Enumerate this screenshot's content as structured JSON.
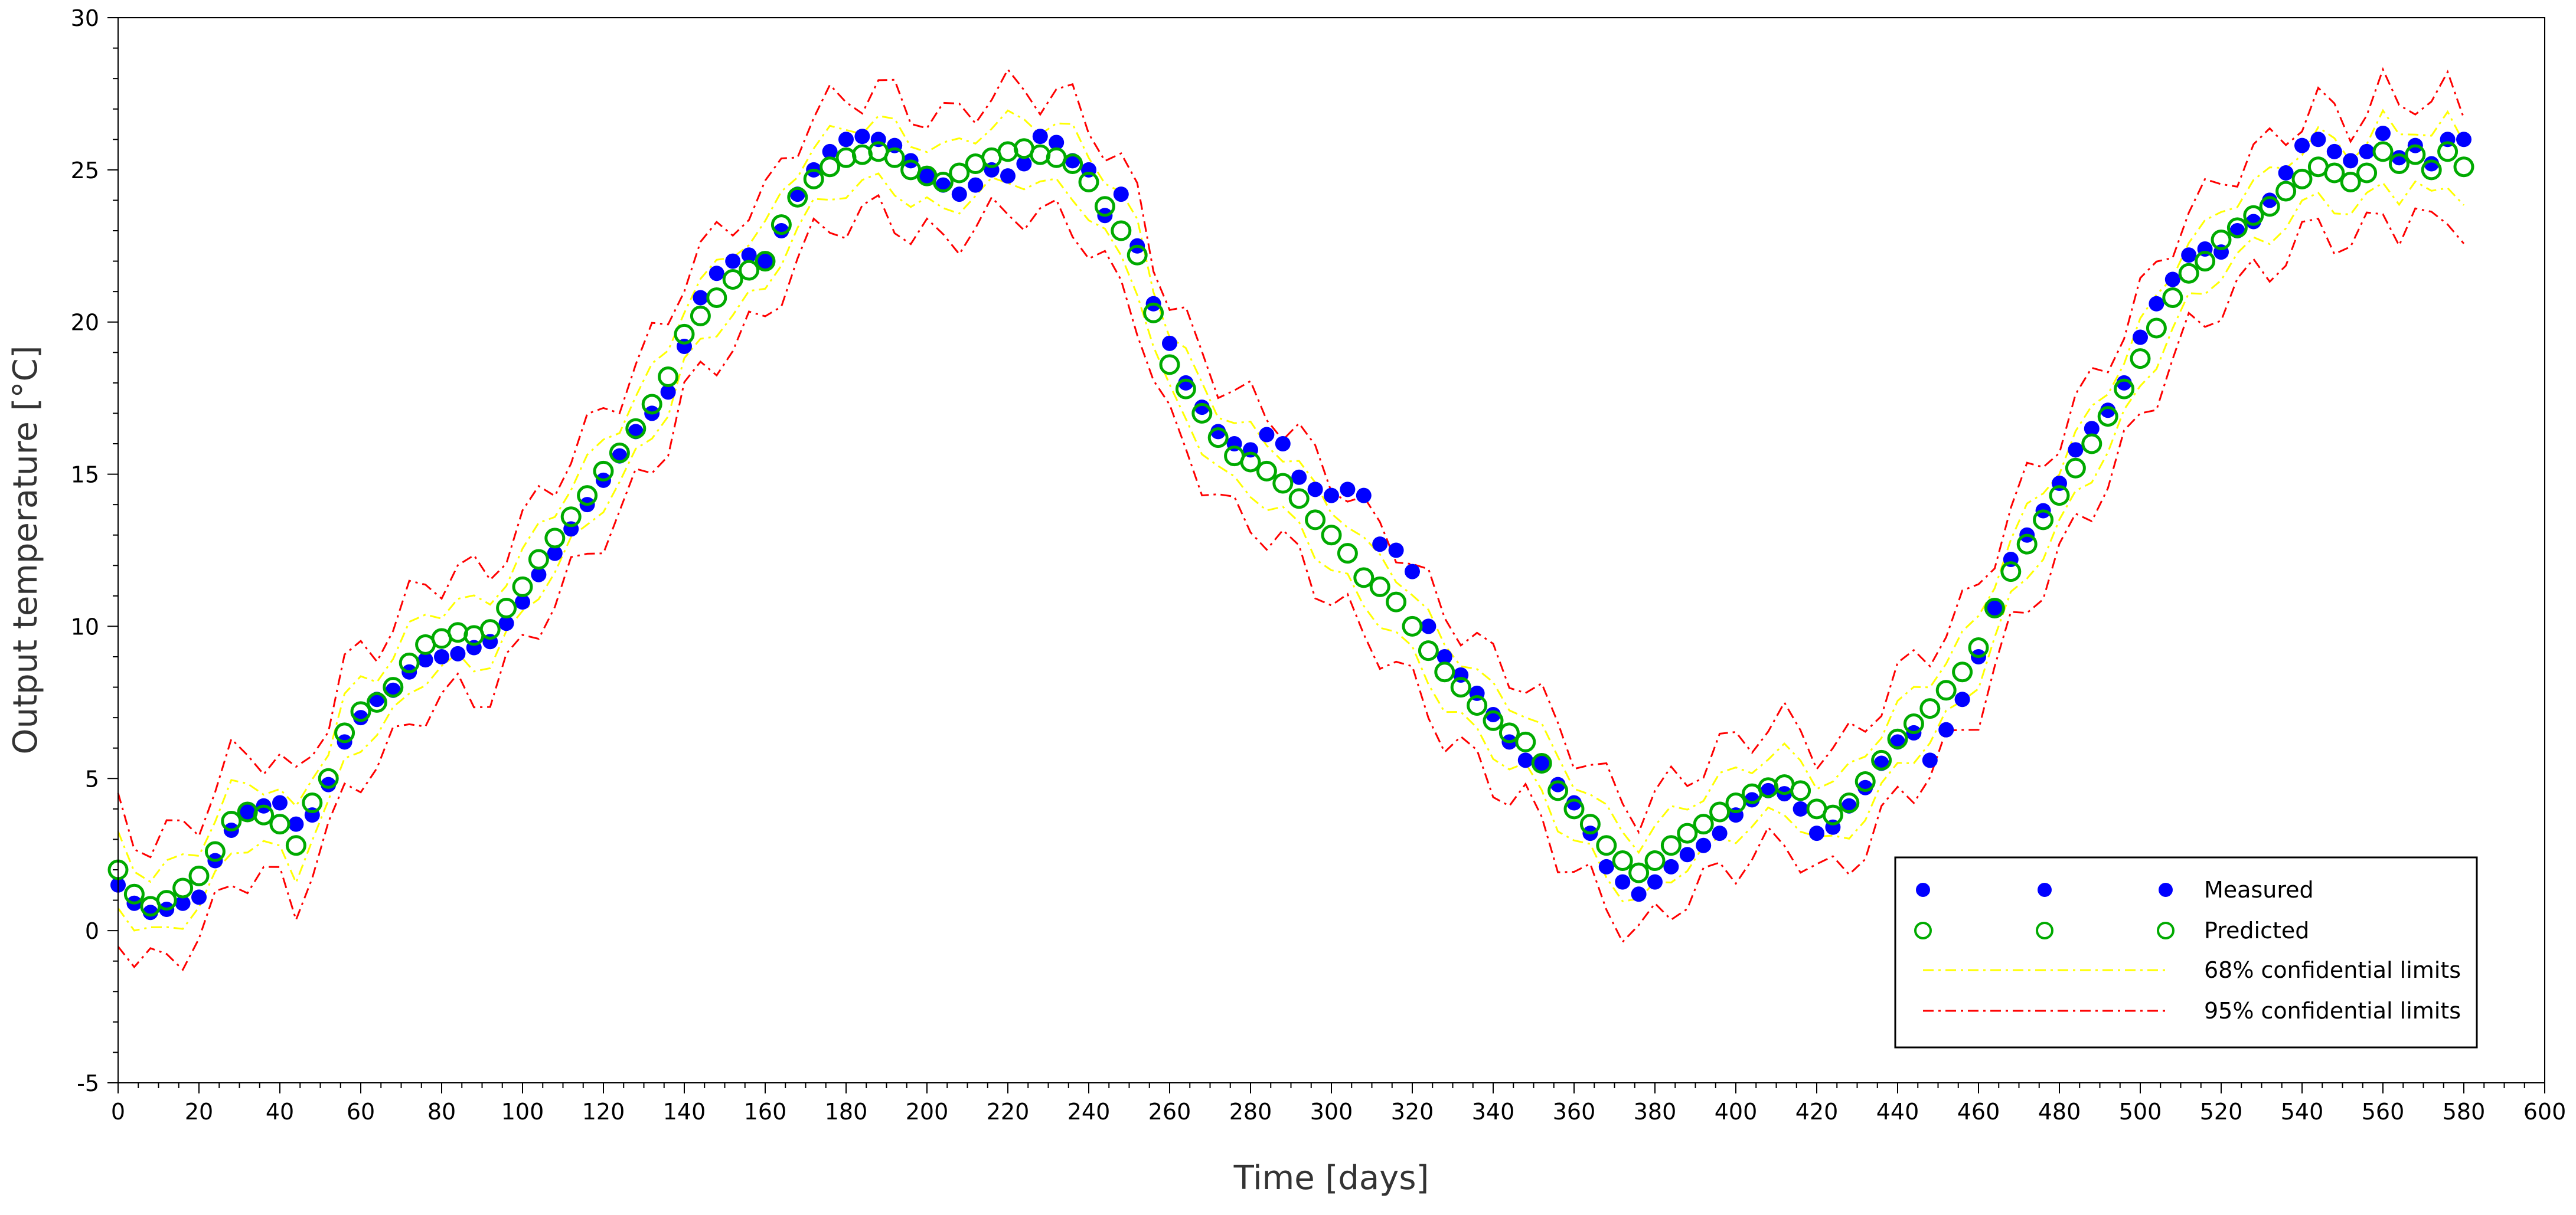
{
  "chart_data": {
    "type": "scatter",
    "title": "",
    "xlabel": "Time [days]",
    "ylabel": "Output temperature [°C]",
    "xlim": [
      0,
      600
    ],
    "ylim": [
      -5,
      30
    ],
    "xticks": [
      0,
      20,
      40,
      60,
      80,
      100,
      120,
      140,
      160,
      180,
      200,
      220,
      240,
      260,
      280,
      300,
      320,
      340,
      360,
      380,
      400,
      420,
      440,
      460,
      480,
      500,
      520,
      540,
      560,
      580,
      600
    ],
    "yticks": [
      -5,
      0,
      5,
      10,
      15,
      20,
      25,
      30
    ],
    "grid": false,
    "legend_position": "bottom-right",
    "x": [
      0,
      4,
      8,
      12,
      16,
      20,
      24,
      28,
      32,
      36,
      40,
      44,
      48,
      52,
      56,
      60,
      64,
      68,
      72,
      76,
      80,
      84,
      88,
      92,
      96,
      100,
      104,
      108,
      112,
      116,
      120,
      124,
      128,
      132,
      136,
      140,
      144,
      148,
      152,
      156,
      160,
      164,
      168,
      172,
      176,
      180,
      184,
      188,
      192,
      196,
      200,
      204,
      208,
      212,
      216,
      220,
      224,
      228,
      232,
      236,
      240,
      244,
      248,
      252,
      256,
      260,
      264,
      268,
      272,
      276,
      280,
      284,
      288,
      292,
      296,
      300,
      304,
      308,
      312,
      316,
      320,
      324,
      328,
      332,
      336,
      340,
      344,
      348,
      352,
      356,
      360,
      364,
      368,
      372,
      376,
      380,
      384,
      388,
      392,
      396,
      400,
      404,
      408,
      412,
      416,
      420,
      424,
      428,
      432,
      436,
      440,
      444,
      448,
      452,
      456,
      460,
      464,
      468,
      472,
      476,
      480,
      484,
      488,
      492,
      496,
      500,
      504,
      508,
      512,
      516,
      520,
      524,
      528,
      532,
      536,
      540,
      544,
      548,
      552,
      556,
      560,
      564,
      568,
      572,
      576,
      580
    ],
    "series": [
      {
        "name": "Measured",
        "color": "#0000ff",
        "marker": "filled-circle",
        "values": [
          1.5,
          0.9,
          0.6,
          0.7,
          0.9,
          1.1,
          2.3,
          3.3,
          3.9,
          4.1,
          4.2,
          3.5,
          3.8,
          4.8,
          6.2,
          7.0,
          7.6,
          7.9,
          8.5,
          8.9,
          9.0,
          9.1,
          9.3,
          9.5,
          10.1,
          10.8,
          11.7,
          12.4,
          13.2,
          14.0,
          14.8,
          15.6,
          16.4,
          17.0,
          17.7,
          19.2,
          20.8,
          21.6,
          22.0,
          22.2,
          22.0,
          23.0,
          24.2,
          25.0,
          25.6,
          26.0,
          26.1,
          26.0,
          25.8,
          25.3,
          24.8,
          24.5,
          24.2,
          24.5,
          25.0,
          24.8,
          25.2,
          26.1,
          25.9,
          25.3,
          25.0,
          23.5,
          24.2,
          22.5,
          20.6,
          19.3,
          18.0,
          17.2,
          16.4,
          16.0,
          15.8,
          16.3,
          16.0,
          14.9,
          14.5,
          14.3,
          14.5,
          14.3,
          12.7,
          12.5,
          11.8,
          10.0,
          9.0,
          8.4,
          7.8,
          7.1,
          6.2,
          5.6,
          5.5,
          4.8,
          4.2,
          3.2,
          2.1,
          1.6,
          1.2,
          1.6,
          2.1,
          2.5,
          2.8,
          3.2,
          3.8,
          4.3,
          4.6,
          4.5,
          4.0,
          3.2,
          3.4,
          4.1,
          4.7,
          5.5,
          6.2,
          6.5,
          5.6,
          6.6,
          7.6,
          9.0,
          10.6,
          12.2,
          13.0,
          13.8,
          14.7,
          15.8,
          16.5,
          17.1,
          18.0,
          19.5,
          20.6,
          21.4,
          22.2,
          22.4,
          22.3,
          23.0,
          23.3,
          24.0,
          24.9,
          25.8,
          26.0,
          25.6,
          25.3,
          25.6,
          26.2,
          25.4,
          25.8,
          25.2,
          26.0,
          26.0
        ]
      },
      {
        "name": "Predicted",
        "color": "#00aa00",
        "marker": "hollow-circle",
        "values": [
          2.0,
          1.2,
          0.8,
          1.0,
          1.4,
          1.8,
          2.6,
          3.6,
          3.9,
          3.8,
          3.5,
          2.8,
          4.2,
          5.0,
          6.5,
          7.2,
          7.5,
          8.0,
          8.8,
          9.4,
          9.6,
          9.8,
          9.7,
          9.9,
          10.6,
          11.3,
          12.2,
          12.9,
          13.6,
          14.3,
          15.1,
          15.7,
          16.5,
          17.3,
          18.2,
          19.6,
          20.2,
          20.8,
          21.4,
          21.7,
          22.0,
          23.2,
          24.1,
          24.7,
          25.1,
          25.4,
          25.5,
          25.6,
          25.4,
          25.0,
          24.8,
          24.6,
          24.9,
          25.2,
          25.4,
          25.6,
          25.7,
          25.5,
          25.4,
          25.2,
          24.6,
          23.8,
          23.0,
          22.2,
          20.3,
          18.6,
          17.8,
          17.0,
          16.2,
          15.6,
          15.4,
          15.1,
          14.7,
          14.2,
          13.5,
          13.0,
          12.4,
          11.6,
          11.3,
          10.8,
          10.0,
          9.2,
          8.5,
          8.0,
          7.4,
          6.9,
          6.5,
          6.2,
          5.5,
          4.6,
          4.0,
          3.5,
          2.8,
          2.3,
          1.9,
          2.3,
          2.8,
          3.2,
          3.5,
          3.9,
          4.2,
          4.5,
          4.7,
          4.8,
          4.6,
          4.0,
          3.8,
          4.2,
          4.9,
          5.6,
          6.3,
          6.8,
          7.3,
          7.9,
          8.5,
          9.3,
          10.6,
          11.8,
          12.7,
          13.5,
          14.3,
          15.2,
          16.0,
          16.9,
          17.8,
          18.8,
          19.8,
          20.8,
          21.6,
          22.0,
          22.7,
          23.1,
          23.5,
          23.8,
          24.3,
          24.7,
          25.1,
          24.9,
          24.6,
          24.9,
          25.6,
          25.2,
          25.5,
          25.0,
          25.6,
          25.1
        ]
      }
    ],
    "confidence": [
      {
        "name": "68% confidential limits",
        "color": "#ffff00",
        "sigma": 1.0
      },
      {
        "name": "95% confidential limits",
        "color": "#ff0000",
        "sigma": 2.0
      }
    ]
  }
}
